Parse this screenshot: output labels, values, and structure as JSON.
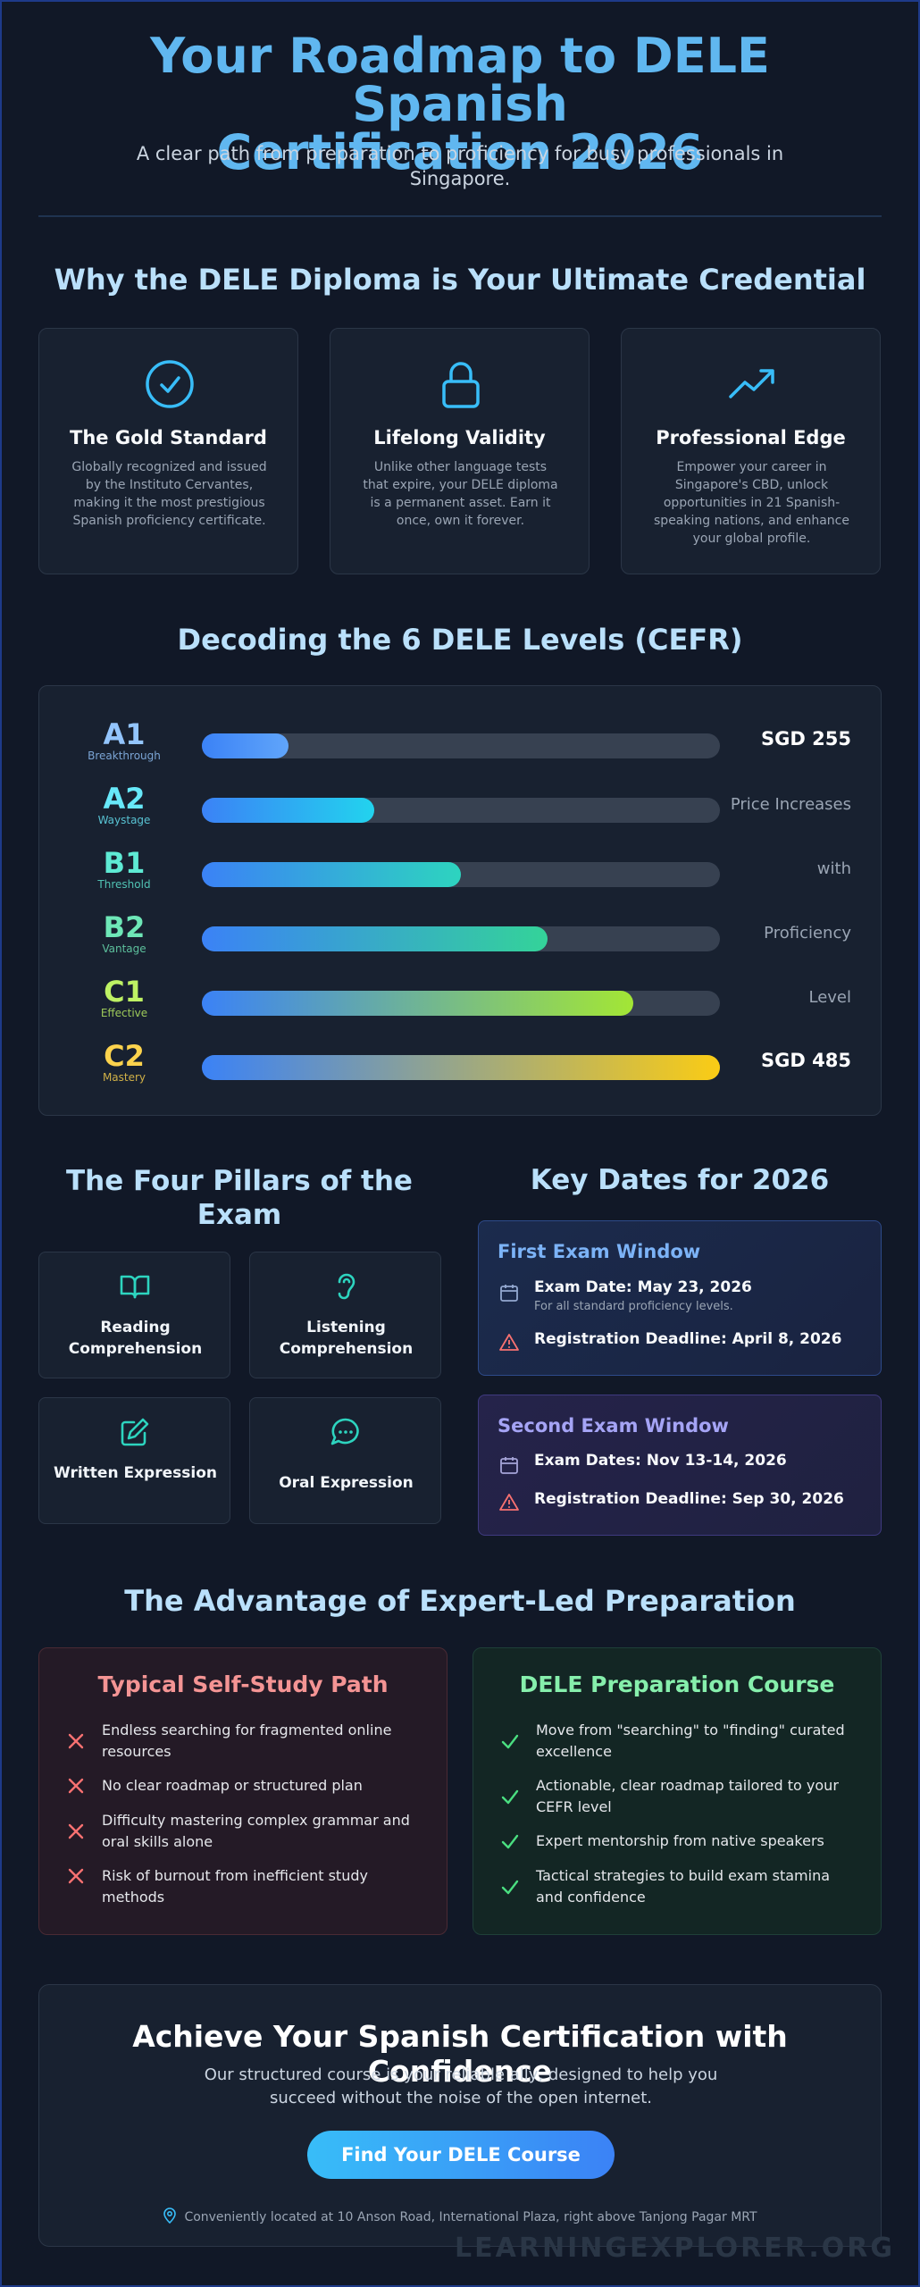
{
  "hero": {
    "title_line1": "Your Roadmap to DELE Spanish",
    "title_line2": "Certification 2026",
    "subtitle": "A clear path from preparation to proficiency for busy professionals in Singapore."
  },
  "why": {
    "title": "Why the DELE Diploma is Your Ultimate Credential",
    "cards": [
      {
        "icon": "check-circle-icon",
        "title": "The Gold Standard",
        "desc": "Globally recognized and issued by the Instituto Cervantes, making it the most prestigious Spanish proficiency certificate."
      },
      {
        "icon": "lock-icon",
        "title": "Lifelong Validity",
        "desc": "Unlike other language tests that expire, your DELE diploma is a permanent asset. Earn it once, own it forever."
      },
      {
        "icon": "trending-up-icon",
        "title": "Professional Edge",
        "desc": "Empower your career in Singapore's CBD, unlock opportunities in 21 Spanish-speaking nations, and enhance your global profile."
      }
    ]
  },
  "levels": {
    "title": "Decoding the 6 DELE Levels (CEFR)",
    "rows": [
      {
        "code": "A1",
        "name": "Breakthrough",
        "fill": 0.167,
        "price": "SGD 255",
        "color": "#93c5fd",
        "bar_end": "#60a5fa"
      },
      {
        "code": "A2",
        "name": "Waystage",
        "fill": 0.333,
        "price": "Price Increases",
        "color": "#67e8f9",
        "bar_end": "#22d3ee"
      },
      {
        "code": "B1",
        "name": "Threshold",
        "fill": 0.5,
        "price": "with",
        "color": "#5eead4",
        "bar_end": "#2dd4bf"
      },
      {
        "code": "B2",
        "name": "Vantage",
        "fill": 0.667,
        "price": "Proficiency",
        "color": "#6ee7b7",
        "bar_end": "#34d399"
      },
      {
        "code": "C1",
        "name": "Effective",
        "fill": 0.833,
        "price": "Level",
        "color": "#bef264",
        "bar_end": "#a3e635"
      },
      {
        "code": "C2",
        "name": "Mastery",
        "fill": 1.0,
        "price": "SGD 485",
        "color": "#fcd34d",
        "bar_end": "#facc15"
      }
    ]
  },
  "pillars": {
    "title": "The Four Pillars of the Exam",
    "items": [
      {
        "icon": "book-icon",
        "label": "Reading Comprehension"
      },
      {
        "icon": "ear-icon",
        "label": "Listening Comprehension"
      },
      {
        "icon": "pencil-icon",
        "label": "Written Expression"
      },
      {
        "icon": "chat-bubble-icon",
        "label": "Oral Expression"
      }
    ]
  },
  "dates": {
    "title": "Key Dates for 2026",
    "windows": [
      {
        "title": "First Exam Window",
        "exam": "Exam Date: May 23, 2026",
        "note": "For all standard proficiency levels.",
        "deadline": "Registration Deadline: April 8, 2026"
      },
      {
        "title": "Second Exam Window",
        "exam": "Exam Dates: Nov 13-14, 2026",
        "deadline": "Registration Deadline: Sep 30, 2026"
      }
    ]
  },
  "advantage": {
    "title": "The Advantage of Expert-Led Preparation",
    "self_study": {
      "title": "Typical Self-Study Path",
      "items": [
        "Endless searching for fragmented online resources",
        "No clear roadmap or structured plan",
        "Difficulty mastering complex grammar and oral skills alone",
        "Risk of burnout from inefficient study methods"
      ]
    },
    "course": {
      "title": "DELE Preparation Course",
      "items": [
        "Move from \"searching\" to \"finding\" curated excellence",
        "Actionable, clear roadmap tailored to your CEFR level",
        "Expert mentorship from native speakers",
        "Tactical strategies to build exam stamina and confidence"
      ]
    }
  },
  "cta": {
    "title": "Achieve Your Spanish Certification with Confidence",
    "subtitle": "Our structured course is your reliable ally, designed to help you succeed without the noise of the open internet.",
    "button": "Find Your DELE Course",
    "location": "Conveniently located at 10 Anson Road, International Plaza, right above Tanjong Pagar MRT"
  },
  "watermark": "LEARNINGEXPLORER.ORG",
  "colors": {
    "accent": "#38bdf8",
    "self_study_red": "#f87171",
    "course_green": "#4ade80"
  }
}
